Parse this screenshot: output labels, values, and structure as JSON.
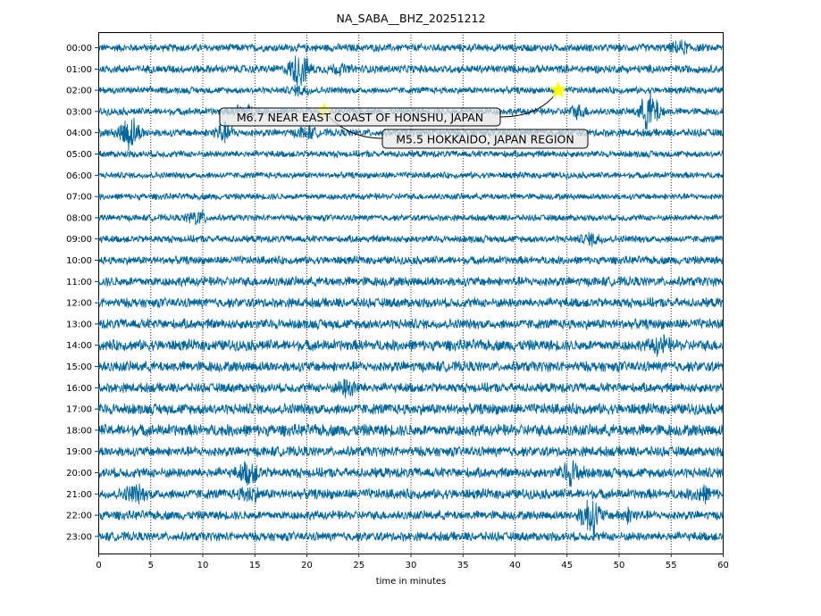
{
  "chart_data": {
    "type": "line",
    "title": "NA_SABA__BHZ_20251212",
    "xlabel": "time in minutes",
    "ylabel": "",
    "xlim": [
      0,
      60
    ],
    "x_ticks": [
      0,
      5,
      10,
      15,
      20,
      25,
      30,
      35,
      40,
      45,
      50,
      55,
      60
    ],
    "grid": {
      "vertical": "dotted",
      "horizontal": false
    },
    "line_color": "#006699",
    "rows": [
      {
        "label": "00:00",
        "amp": 0.32
      },
      {
        "label": "01:00",
        "amp": 0.34
      },
      {
        "label": "02:00",
        "amp": 0.28
      },
      {
        "label": "03:00",
        "amp": 0.3
      },
      {
        "label": "04:00",
        "amp": 0.32
      },
      {
        "label": "05:00",
        "amp": 0.28
      },
      {
        "label": "06:00",
        "amp": 0.26
      },
      {
        "label": "07:00",
        "amp": 0.26
      },
      {
        "label": "08:00",
        "amp": 0.26
      },
      {
        "label": "09:00",
        "amp": 0.3
      },
      {
        "label": "10:00",
        "amp": 0.34
      },
      {
        "label": "11:00",
        "amp": 0.4
      },
      {
        "label": "12:00",
        "amp": 0.4
      },
      {
        "label": "13:00",
        "amp": 0.42
      },
      {
        "label": "14:00",
        "amp": 0.46
      },
      {
        "label": "15:00",
        "amp": 0.44
      },
      {
        "label": "16:00",
        "amp": 0.4
      },
      {
        "label": "17:00",
        "amp": 0.46
      },
      {
        "label": "18:00",
        "amp": 0.5
      },
      {
        "label": "19:00",
        "amp": 0.42
      },
      {
        "label": "20:00",
        "amp": 0.42
      },
      {
        "label": "21:00",
        "amp": 0.42
      },
      {
        "label": "22:00",
        "amp": 0.38
      },
      {
        "label": "23:00",
        "amp": 0.38
      }
    ],
    "bursts": [
      {
        "row": "00:00",
        "minute": 56,
        "amp": 0.7
      },
      {
        "row": "01:00",
        "minute": 19.3,
        "amp": 1.6
      },
      {
        "row": "01:00",
        "minute": 23,
        "amp": 0.6
      },
      {
        "row": "02:00",
        "minute": 19.5,
        "amp": 0.6
      },
      {
        "row": "03:00",
        "minute": 14,
        "amp": 0.8
      },
      {
        "row": "03:00",
        "minute": 46,
        "amp": 0.7
      },
      {
        "row": "03:00",
        "minute": 53,
        "amp": 1.8
      },
      {
        "row": "04:00",
        "minute": 3,
        "amp": 1.6
      },
      {
        "row": "04:00",
        "minute": 12,
        "amp": 1.0
      },
      {
        "row": "04:00",
        "minute": 20,
        "amp": 0.7
      },
      {
        "row": "08:00",
        "minute": 9.5,
        "amp": 0.8
      },
      {
        "row": "09:00",
        "minute": 47.5,
        "amp": 0.7
      },
      {
        "row": "14:00",
        "minute": 54,
        "amp": 1.0
      },
      {
        "row": "16:00",
        "minute": 24,
        "amp": 1.0
      },
      {
        "row": "20:00",
        "minute": 14.5,
        "amp": 1.2
      },
      {
        "row": "20:00",
        "minute": 45.5,
        "amp": 1.3
      },
      {
        "row": "21:00",
        "minute": 3.5,
        "amp": 1.0
      },
      {
        "row": "21:00",
        "minute": 14.5,
        "amp": 0.9
      },
      {
        "row": "21:00",
        "minute": 58,
        "amp": 0.9
      },
      {
        "row": "22:00",
        "minute": 47.3,
        "amp": 1.8
      },
      {
        "row": "22:00",
        "minute": 51,
        "amp": 0.8
      }
    ],
    "events": [
      {
        "label": "M6.7 NEAR EAST COAST OF HONSHU, JAPAN",
        "row": "02:00",
        "minute": 44.2
      },
      {
        "label": "M5.5 HOKKAIDO, JAPAN REGION",
        "row": "03:00",
        "minute": 21.7
      }
    ],
    "marker_color": "#ffff00"
  }
}
